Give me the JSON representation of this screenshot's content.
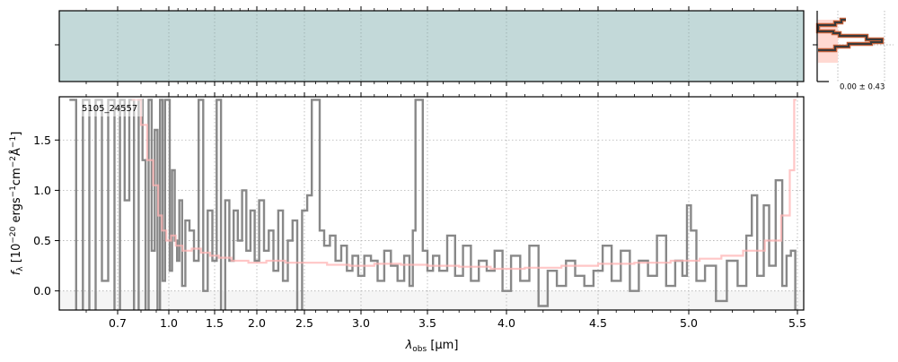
{
  "chart_data": [
    {
      "type": "heatmap",
      "description_visible": false,
      "colors": {
        "background": "#c3d9d9",
        "low": "#ffffff",
        "mid": "#7d7f9c",
        "high": "#000000"
      }
    },
    {
      "type": "histogram",
      "annotation": "0.00 ± 0.43",
      "colors": {
        "line": "#3a3a3a",
        "outline": "#c0603a",
        "fill": "#ffd9d2"
      }
    },
    {
      "type": "line",
      "annotation": "5105_24557",
      "xlabel": {
        "symbol": "λ",
        "sub": "obs",
        "unit": " [μm]"
      },
      "ylabel": {
        "symbol": "f",
        "sub": "λ",
        "a": " [10",
        "e1": "−20",
        "b": " ergs",
        "e2": "−1",
        "c": "cm",
        "e3": "−2",
        "d": "Å",
        "e4": "−1",
        "e": "]"
      },
      "xlim": [
        0.52,
        5.52
      ],
      "ylim": [
        -0.19,
        1.93
      ],
      "xticks": [
        0.7,
        1.0,
        1.5,
        2.0,
        2.5,
        3.0,
        3.5,
        4.0,
        4.5,
        5.0,
        5.5
      ],
      "xtick_labels": [
        "0.7",
        "1.0",
        "1.5",
        "2.0",
        "2.5",
        "3.0",
        "3.5",
        "4.0",
        "4.5",
        "5.0",
        "5.5"
      ],
      "yticks": [
        0.0,
        0.5,
        1.0,
        1.5
      ],
      "ytick_labels": [
        "0.0",
        "0.5",
        "1.0",
        "1.5"
      ],
      "grid": true,
      "x_scale": "spectral-resolution (nonlinear)",
      "colors": {
        "data": "#888888",
        "model": "#ffb3b3",
        "below_zero": "#f5f5f5"
      },
      "series": [
        {
          "style": "steps",
          "x": [
            0.56,
            0.58,
            0.6,
            0.62,
            0.64,
            0.66,
            0.68,
            0.7,
            0.72,
            0.74,
            0.76,
            0.78,
            0.8,
            0.82,
            0.84,
            0.86,
            0.88,
            0.9,
            0.92,
            0.94,
            0.96,
            0.98,
            1.0,
            1.02,
            1.05,
            1.08,
            1.1,
            1.13,
            1.16,
            1.2,
            1.25,
            1.3,
            1.35,
            1.4,
            1.45,
            1.5,
            1.55,
            1.6,
            1.65,
            1.7,
            1.75,
            1.8,
            1.85,
            1.9,
            1.95,
            2.0,
            2.05,
            2.1,
            2.15,
            2.2,
            2.25,
            2.3,
            2.35,
            2.4,
            2.45,
            2.5,
            2.55,
            2.58,
            2.62,
            2.65,
            2.7,
            2.75,
            2.8,
            2.85,
            2.9,
            2.95,
            3.0,
            3.05,
            3.1,
            3.15,
            3.2,
            3.25,
            3.3,
            3.35,
            3.38,
            3.4,
            3.42,
            3.45,
            3.48,
            3.52,
            3.55,
            3.6,
            3.65,
            3.7,
            3.75,
            3.8,
            3.85,
            3.9,
            3.95,
            4.0,
            4.05,
            4.1,
            4.15,
            4.2,
            4.25,
            4.3,
            4.35,
            4.4,
            4.45,
            4.5,
            4.55,
            4.6,
            4.65,
            4.7,
            4.75,
            4.8,
            4.85,
            4.9,
            4.95,
            4.98,
            5.0,
            5.02,
            5.05,
            5.1,
            5.15,
            5.2,
            5.25,
            5.28,
            5.3,
            5.33,
            5.36,
            5.38,
            5.42,
            5.44,
            5.46,
            5.48,
            5.5
          ],
          "y": [
            1.9,
            -0.2,
            1.9,
            -0.2,
            1.9,
            0.1,
            1.9,
            -0.2,
            1.9,
            0.9,
            1.9,
            -0.2,
            1.9,
            1.3,
            -0.2,
            1.9,
            0.4,
            1.6,
            -0.2,
            1.9,
            0.1,
            1.9,
            1.9,
            0.2,
            1.2,
            0.5,
            0.3,
            0.9,
            0.05,
            0.7,
            0.6,
            0.3,
            1.9,
            0.0,
            0.8,
            0.3,
            1.9,
            -0.2,
            0.9,
            0.3,
            0.8,
            0.5,
            1.0,
            0.4,
            0.8,
            0.3,
            0.9,
            0.4,
            0.6,
            0.2,
            0.8,
            0.1,
            0.5,
            0.7,
            -0.2,
            0.8,
            0.95,
            1.9,
            1.9,
            0.6,
            0.45,
            0.55,
            0.3,
            0.45,
            0.2,
            0.35,
            0.15,
            0.35,
            0.3,
            0.1,
            0.4,
            0.25,
            0.1,
            0.35,
            0.05,
            0.6,
            1.9,
            1.9,
            0.4,
            0.2,
            0.35,
            0.2,
            0.55,
            0.15,
            0.45,
            0.1,
            0.3,
            0.2,
            0.4,
            0.0,
            0.35,
            0.1,
            0.45,
            -0.15,
            0.2,
            0.05,
            0.3,
            0.15,
            0.05,
            0.2,
            0.45,
            0.1,
            0.4,
            0.0,
            0.3,
            0.15,
            0.55,
            0.05,
            0.3,
            0.15,
            0.85,
            0.6,
            0.1,
            0.25,
            -0.1,
            0.3,
            0.05,
            0.55,
            0.95,
            0.15,
            0.85,
            0.25,
            1.1,
            0.05,
            0.35,
            0.4,
            -0.2
          ]
        },
        {
          "style": "steps",
          "x": [
            0.78,
            0.82,
            0.86,
            0.9,
            0.93,
            0.96,
            1.0,
            1.05,
            1.1,
            1.2,
            1.3,
            1.4,
            1.5,
            1.6,
            1.8,
            2.0,
            2.2,
            2.4,
            2.6,
            2.8,
            3.0,
            3.2,
            3.4,
            3.6,
            3.8,
            4.0,
            4.2,
            4.4,
            4.6,
            4.8,
            5.0,
            5.1,
            5.2,
            5.3,
            5.4,
            5.45,
            5.48,
            5.49
          ],
          "y": [
            1.9,
            1.65,
            1.3,
            1.05,
            0.75,
            0.6,
            0.5,
            0.55,
            0.45,
            0.4,
            0.42,
            0.38,
            0.35,
            0.33,
            0.3,
            0.28,
            0.3,
            0.28,
            0.28,
            0.26,
            0.25,
            0.27,
            0.26,
            0.25,
            0.24,
            0.22,
            0.23,
            0.25,
            0.27,
            0.28,
            0.3,
            0.32,
            0.35,
            0.4,
            0.5,
            0.75,
            1.2,
            1.9
          ]
        }
      ]
    }
  ]
}
